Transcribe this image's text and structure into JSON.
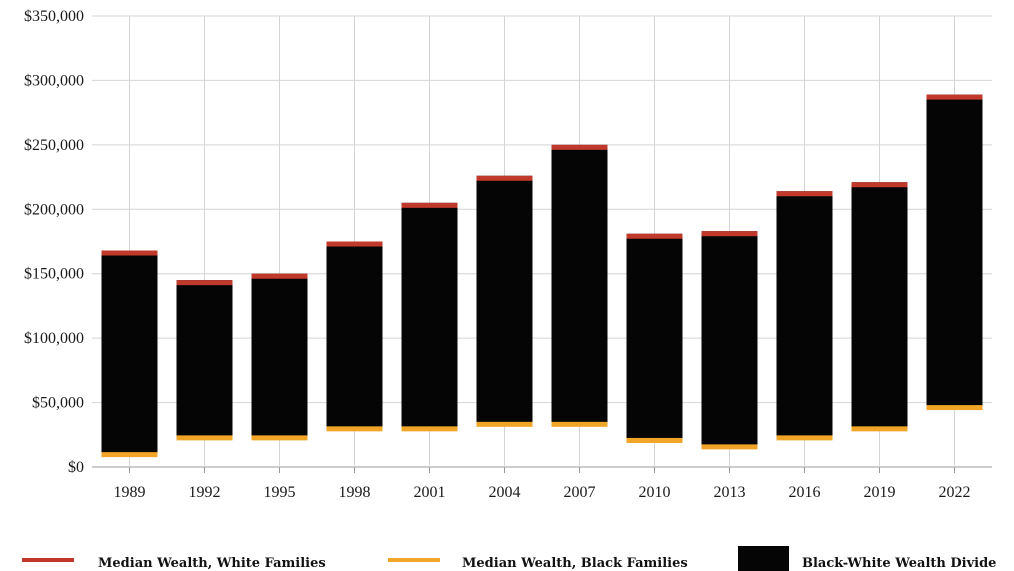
{
  "chart_data": {
    "type": "bar",
    "title": "",
    "xlabel": "",
    "ylabel": "",
    "categories": [
      "1989",
      "1992",
      "1995",
      "1998",
      "2001",
      "2004",
      "2007",
      "2010",
      "2013",
      "2016",
      "2019",
      "2022"
    ],
    "series": [
      {
        "name": "Median Wealth, White Families",
        "values": [
          168000,
          145000,
          150000,
          175000,
          205000,
          226000,
          250000,
          181000,
          183000,
          214000,
          221000,
          289000
        ]
      },
      {
        "name": "Median Wealth, Black Families",
        "values": [
          10000,
          23000,
          23000,
          30000,
          30000,
          33500,
          33500,
          21000,
          16000,
          23000,
          30000,
          46500
        ]
      },
      {
        "name": "Black-White Wealth Divide",
        "values": [
          158000,
          122000,
          127000,
          145000,
          175000,
          192500,
          216500,
          160000,
          167000,
          191000,
          191000,
          242500
        ]
      }
    ],
    "ylim": [
      0,
      350000
    ],
    "yticks": [
      {
        "value": 0,
        "label": "$0"
      },
      {
        "value": 50000,
        "label": "$50,000"
      },
      {
        "value": 100000,
        "label": "$100,000"
      },
      {
        "value": 150000,
        "label": "$150,000"
      },
      {
        "value": 200000,
        "label": "$200,000"
      },
      {
        "value": 250000,
        "label": "$250,000"
      },
      {
        "value": 300000,
        "label": "$300,000"
      },
      {
        "value": 350000,
        "label": "$350,000"
      }
    ],
    "grid": true,
    "legend_position": "bottom",
    "colors": {
      "white": "#c0392b",
      "black": "#f0a526",
      "divide": "#050505",
      "grid": "#d4d4d4",
      "axis": "#9a9a9a"
    }
  }
}
